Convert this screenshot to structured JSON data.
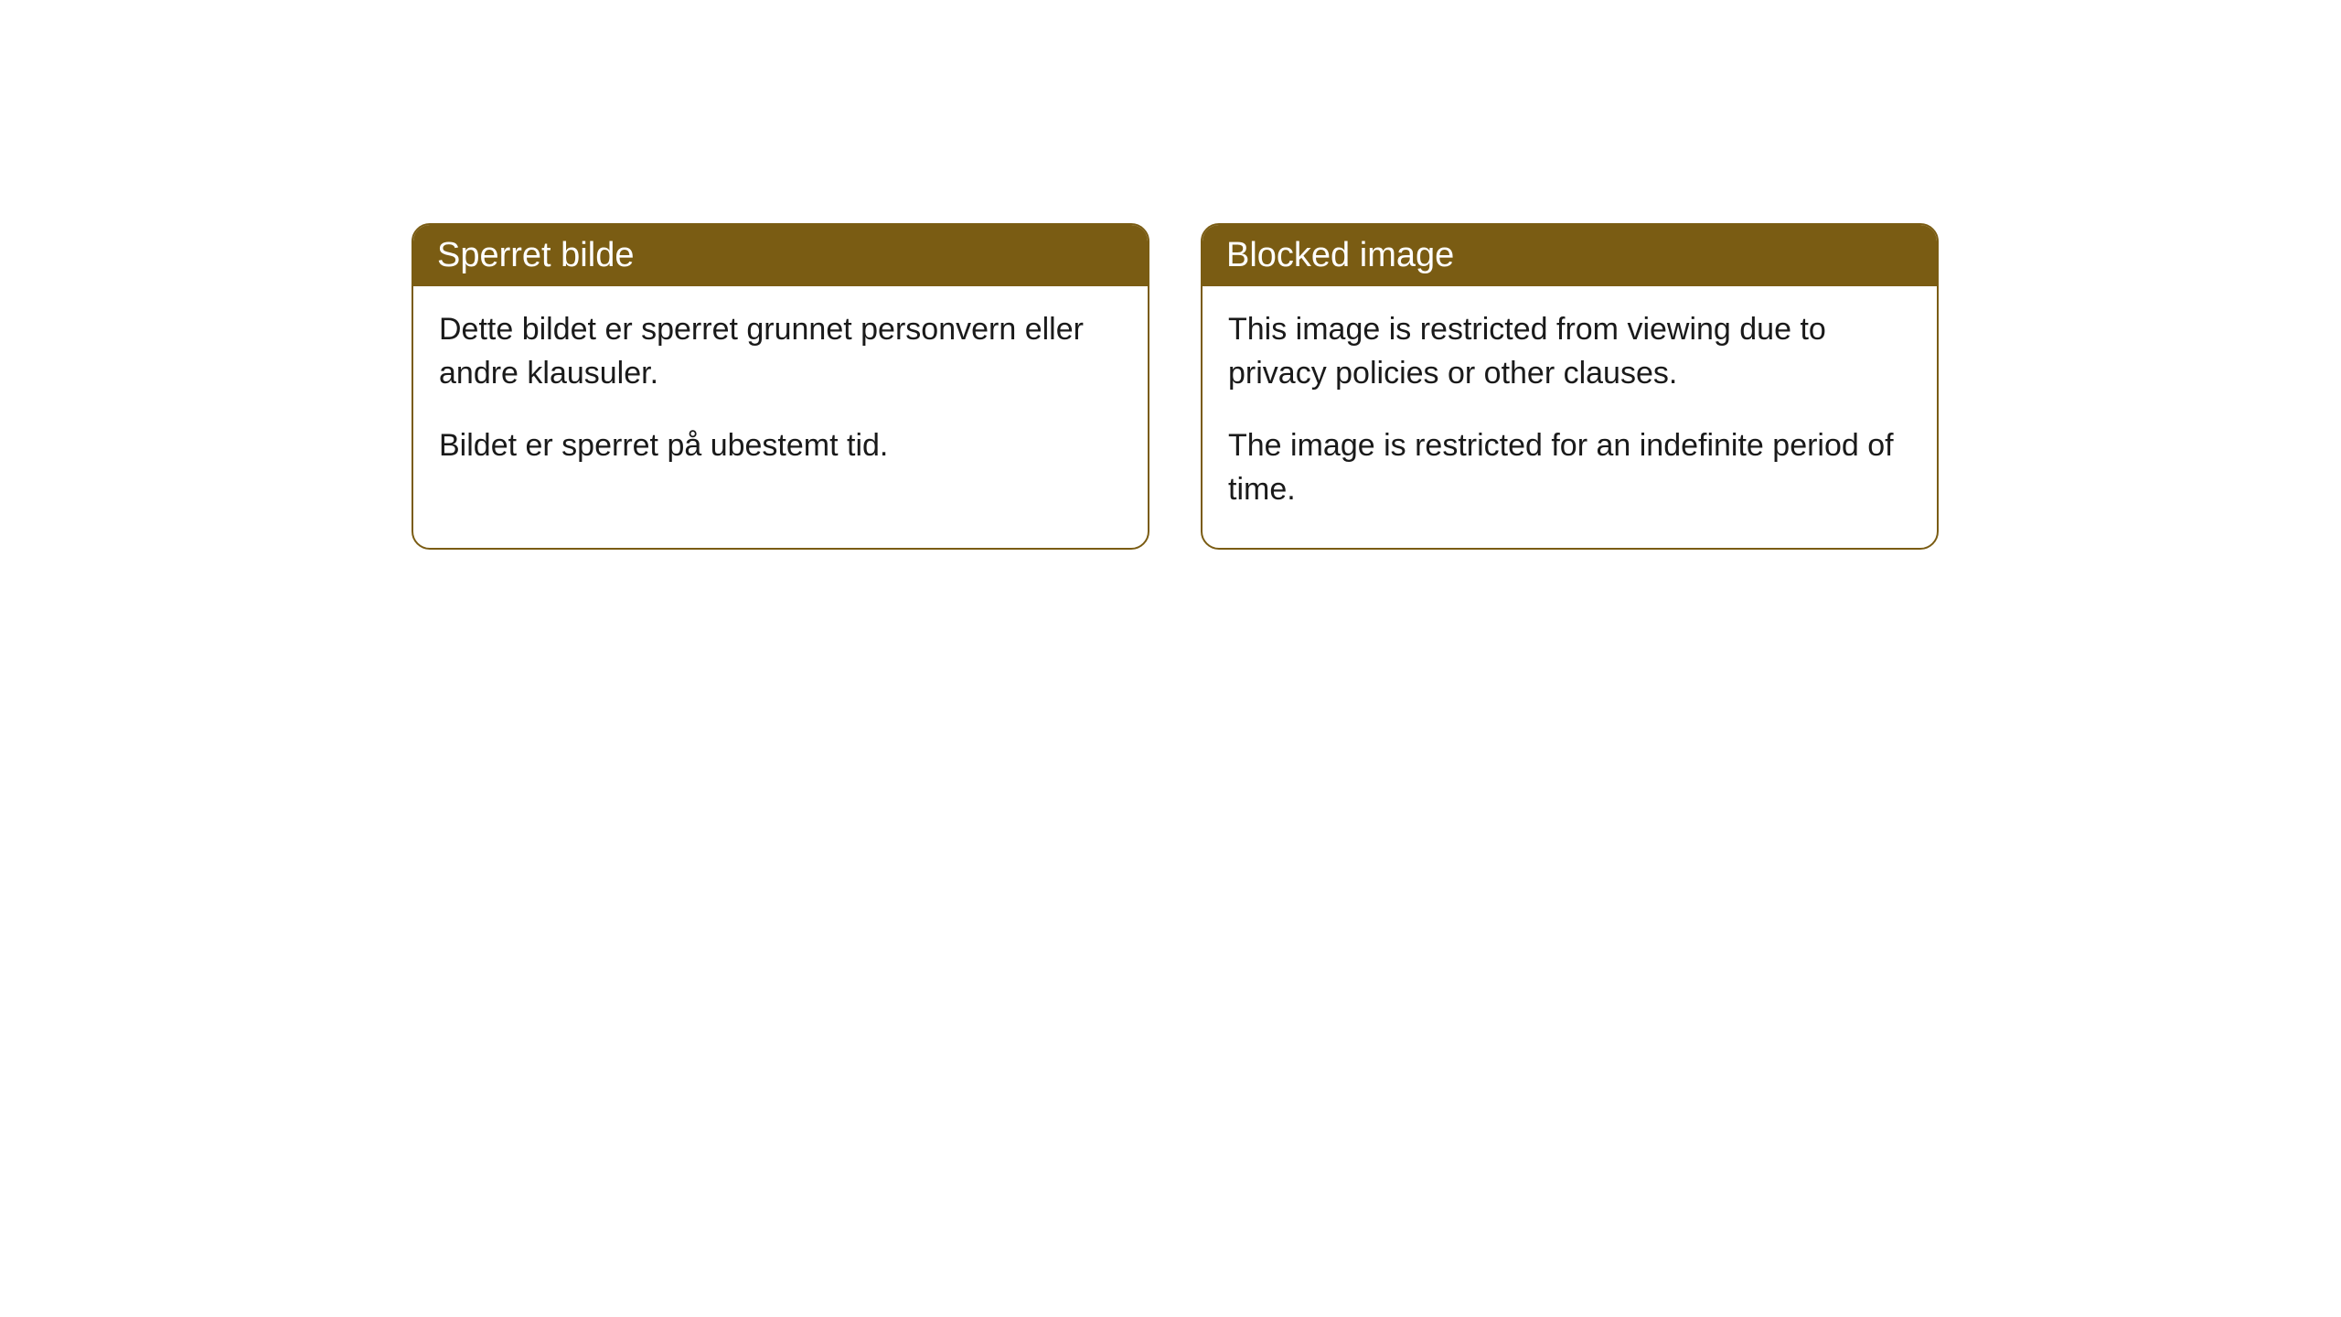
{
  "cards": [
    {
      "title": "Sperret bilde",
      "paragraph1": "Dette bildet er sperret grunnet personvern eller andre klausuler.",
      "paragraph2": "Bildet er sperret på ubestemt tid."
    },
    {
      "title": "Blocked image",
      "paragraph1": "This image is restricted from viewing due to privacy policies or other clauses.",
      "paragraph2": "The image is restricted for an indefinite period of time."
    }
  ],
  "styling": {
    "card_border_color": "#7a5c13",
    "card_header_bg": "#7a5c13",
    "card_header_text_color": "#ffffff",
    "card_body_bg": "#ffffff",
    "card_body_text_color": "#1a1a1a",
    "border_radius": 20,
    "title_fontsize": 38,
    "body_fontsize": 34,
    "page_bg": "#ffffff"
  }
}
